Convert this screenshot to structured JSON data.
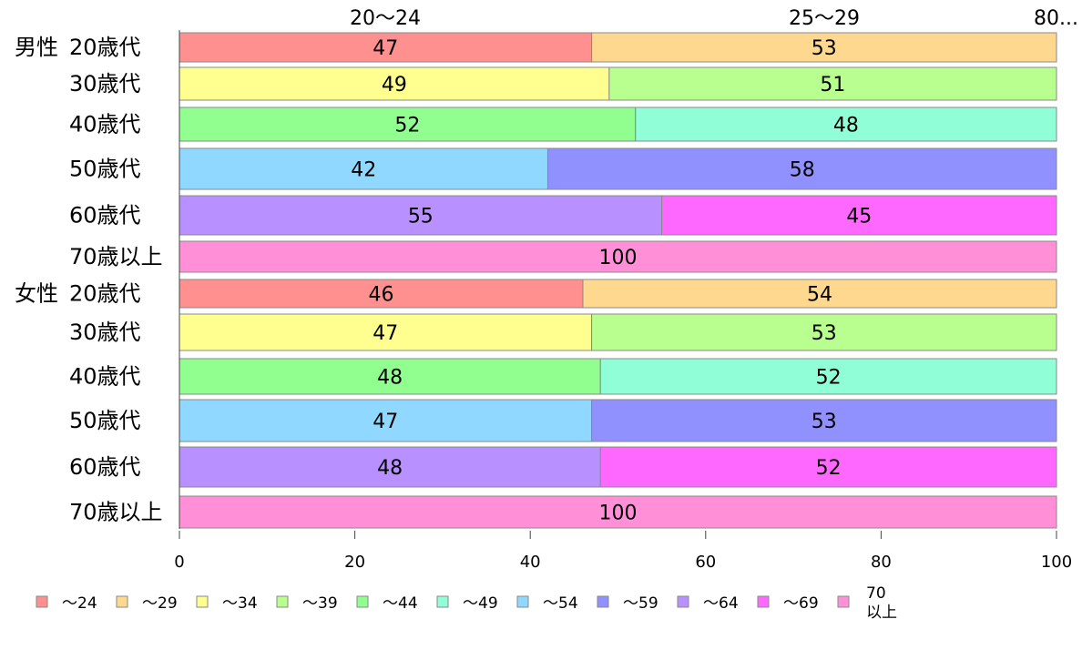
{
  "chart_data": {
    "type": "bar",
    "orientation": "horizontal",
    "stacked": true,
    "top_labels": [
      "20〜24",
      "25〜29",
      "80..."
    ],
    "gender_labels": [
      "男性",
      "女性"
    ],
    "rows": [
      {
        "gender": "男性",
        "age": "20歳代",
        "segments": [
          {
            "cat": 0,
            "value": 47
          },
          {
            "cat": 1,
            "value": 53
          }
        ]
      },
      {
        "gender": "",
        "age": "30歳代",
        "segments": [
          {
            "cat": 2,
            "value": 49
          },
          {
            "cat": 3,
            "value": 51
          }
        ]
      },
      {
        "gender": "",
        "age": "40歳代",
        "segments": [
          {
            "cat": 4,
            "value": 52
          },
          {
            "cat": 5,
            "value": 48
          }
        ]
      },
      {
        "gender": "",
        "age": "50歳代",
        "segments": [
          {
            "cat": 6,
            "value": 42
          },
          {
            "cat": 7,
            "value": 58
          }
        ]
      },
      {
        "gender": "",
        "age": "60歳代",
        "segments": [
          {
            "cat": 8,
            "value": 55
          },
          {
            "cat": 9,
            "value": 45
          }
        ]
      },
      {
        "gender": "",
        "age": "70歳以上",
        "segments": [
          {
            "cat": 10,
            "value": 100
          }
        ]
      },
      {
        "gender": "女性",
        "age": "20歳代",
        "segments": [
          {
            "cat": 0,
            "value": 46
          },
          {
            "cat": 1,
            "value": 54
          }
        ]
      },
      {
        "gender": "",
        "age": "30歳代",
        "segments": [
          {
            "cat": 2,
            "value": 47
          },
          {
            "cat": 3,
            "value": 53
          }
        ]
      },
      {
        "gender": "",
        "age": "40歳代",
        "segments": [
          {
            "cat": 4,
            "value": 48
          },
          {
            "cat": 5,
            "value": 52
          }
        ]
      },
      {
        "gender": "",
        "age": "50歳代",
        "segments": [
          {
            "cat": 6,
            "value": 47
          },
          {
            "cat": 7,
            "value": 53
          }
        ]
      },
      {
        "gender": "",
        "age": "60歳代",
        "segments": [
          {
            "cat": 8,
            "value": 48
          },
          {
            "cat": 9,
            "value": 52
          }
        ]
      },
      {
        "gender": "",
        "age": "70歳以上",
        "segments": [
          {
            "cat": 10,
            "value": 100
          }
        ]
      }
    ],
    "categories": [
      {
        "label": "〜24",
        "color": "#ff9090"
      },
      {
        "label": "〜29",
        "color": "#ffd890"
      },
      {
        "label": "〜34",
        "color": "#ffff90"
      },
      {
        "label": "〜39",
        "color": "#b8ff90"
      },
      {
        "label": "〜44",
        "color": "#90ff90"
      },
      {
        "label": "〜49",
        "color": "#90ffd8"
      },
      {
        "label": "〜54",
        "color": "#90d8ff"
      },
      {
        "label": "〜59",
        "color": "#9090ff"
      },
      {
        "label": "〜64",
        "color": "#b890ff"
      },
      {
        "label": "〜69",
        "color": "#ff68ff"
      },
      {
        "label": "70\n以上",
        "color": "#ff90d8"
      }
    ],
    "xticks": [
      0,
      20,
      40,
      60,
      80,
      100
    ],
    "xlim": [
      0,
      100
    ],
    "legend_position": "bottom",
    "grid": false
  }
}
